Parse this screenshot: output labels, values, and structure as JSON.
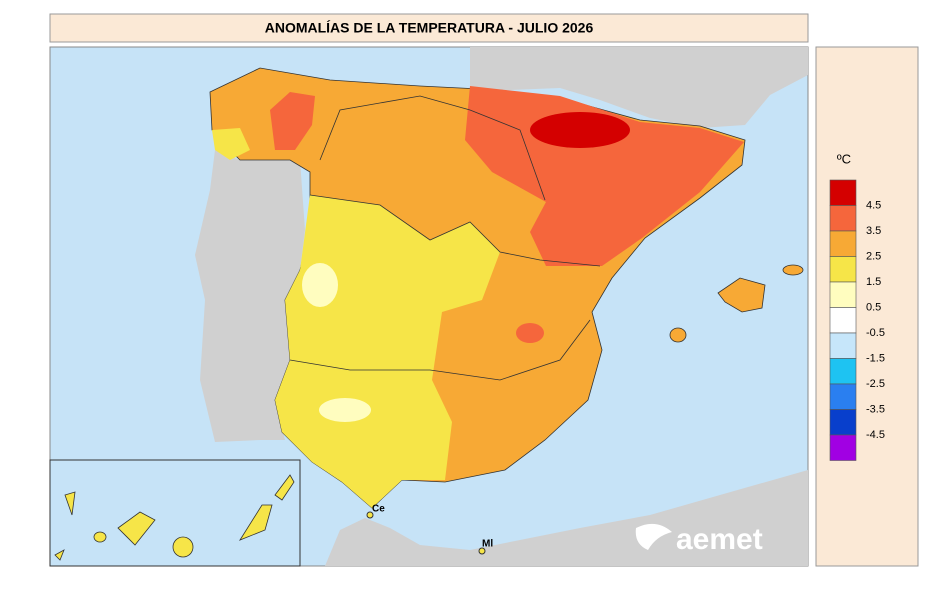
{
  "header": {
    "title": "ANOMALÍAS DE LA TEMPERATURA - JULIO 2026"
  },
  "map": {
    "places": [
      "Ce",
      "Ml"
    ],
    "logo": "aemet"
  },
  "legend": {
    "unit": "ºC",
    "colors": [
      "#d40000",
      "#f5663c",
      "#f7a935",
      "#f6e548",
      "#fffdbf",
      "#ffffff",
      "#c6e6fa",
      "#1ec3f2",
      "#2a7ff0",
      "#083fcc",
      "#a100e3"
    ],
    "labels": [
      4.5,
      3.5,
      2.5,
      1.5,
      0.5,
      -0.5,
      -1.5,
      -2.5,
      -3.5,
      -4.5
    ]
  }
}
